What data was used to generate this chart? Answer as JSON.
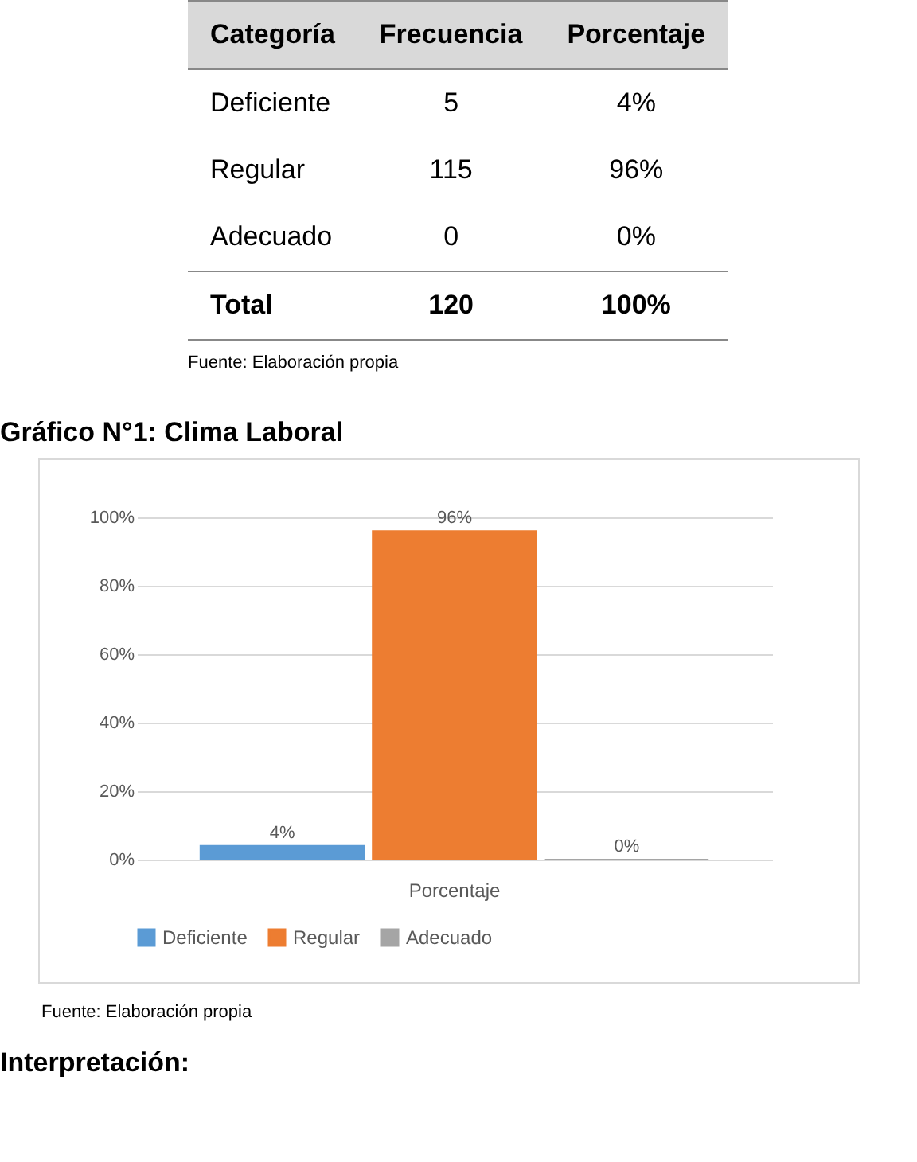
{
  "chart_data": [
    {
      "type": "other",
      "xlabel": "Categoría",
      "categories": [
        "Deficiente",
        "Regular",
        "Adecuado"
      ],
      "series": [
        {
          "name": "Frecuencia",
          "values": [
            5,
            115,
            0
          ],
          "value_labels": [
            "5",
            "115",
            "0"
          ]
        },
        {
          "name": "Porcentaje",
          "values": [
            4,
            96,
            0
          ],
          "value_labels": [
            "4%",
            "96%",
            "0%"
          ]
        }
      ],
      "annotations": [
        "Total",
        "120",
        "100%",
        "Fuente: Elaboración propia"
      ]
    },
    {
      "type": "bar",
      "title": "Gráfico N°1: Clima Laboral",
      "categories": [
        "Porcentaje"
      ],
      "series": [
        {
          "name": "Deficiente",
          "color": "#5b9bd5",
          "values": [
            4
          ],
          "value_labels": [
            "4%"
          ]
        },
        {
          "name": "Regular",
          "color": "#ed7d31",
          "values": [
            96
          ],
          "value_labels": [
            "96%"
          ]
        },
        {
          "name": "Adecuado",
          "color": "#a5a5a5",
          "values": [
            0
          ],
          "value_labels": [
            "0%"
          ]
        }
      ],
      "ylim": [
        0,
        100
      ],
      "yticks": [
        {
          "value": 0,
          "label": "0%"
        },
        {
          "value": 20,
          "label": "20%"
        },
        {
          "value": 40,
          "label": "40%"
        },
        {
          "value": 60,
          "label": "60%"
        },
        {
          "value": 80,
          "label": "80%"
        },
        {
          "value": 100,
          "label": "100%"
        }
      ],
      "grid": "y",
      "legend": "bottom",
      "annotations": [
        "Fuente: Elaboración propia",
        "Interpretación:"
      ]
    }
  ]
}
